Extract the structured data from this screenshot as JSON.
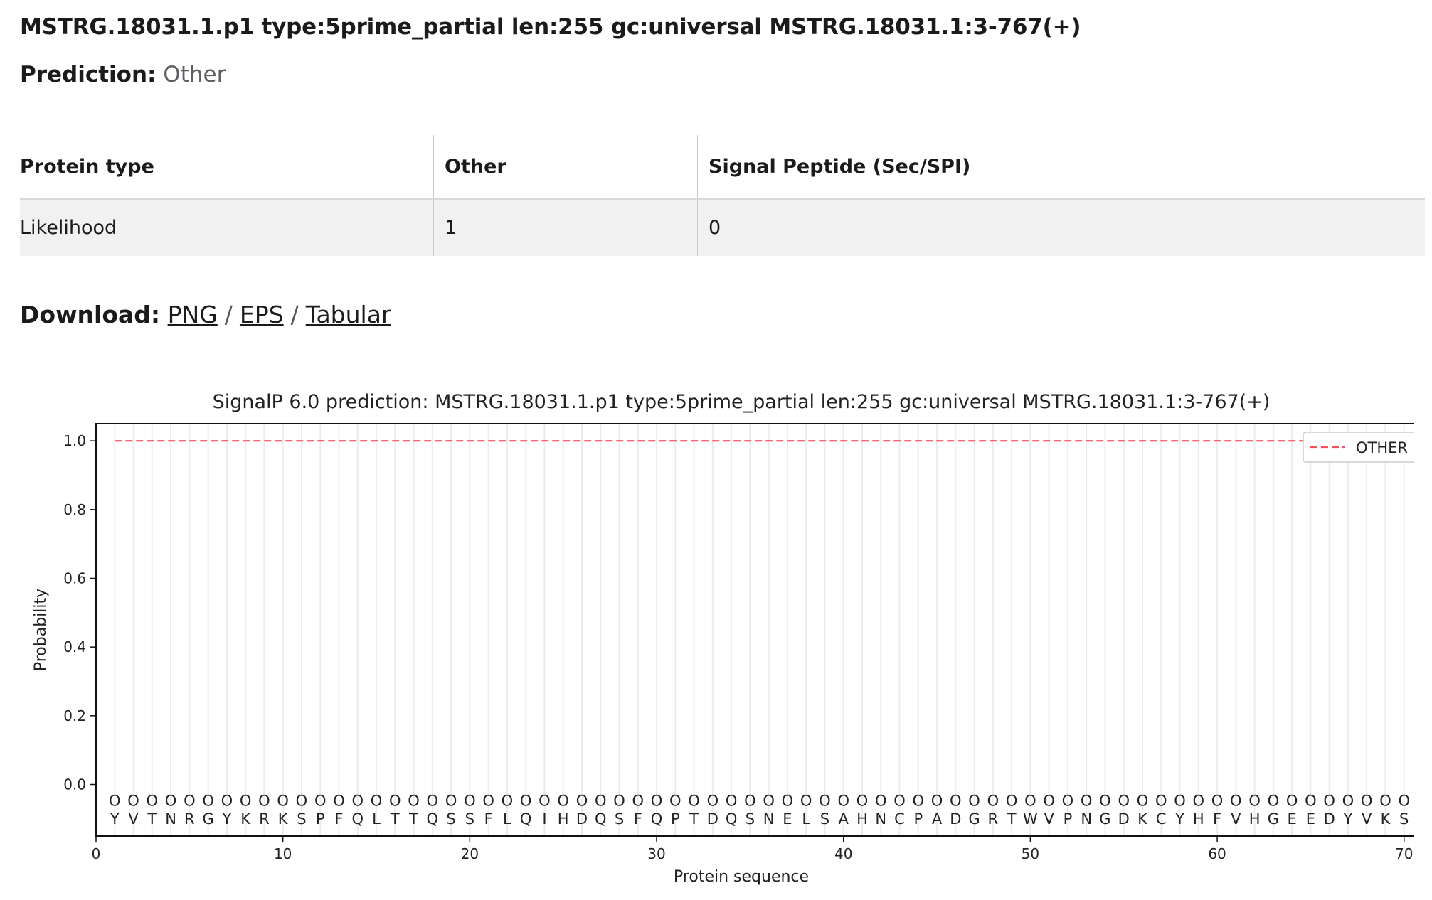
{
  "header": {
    "title": "MSTRG.18031.1.p1 type:5prime_partial len:255 gc:universal MSTRG.18031.1:3-767(+)",
    "prediction_label": "Prediction:",
    "prediction_value": "Other"
  },
  "table": {
    "headers": [
      "Protein type",
      "Other",
      "Signal Peptide (Sec/SPI)"
    ],
    "rows": [
      [
        "Likelihood",
        "1",
        "0"
      ]
    ]
  },
  "download": {
    "label": "Download:",
    "links": [
      "PNG",
      "EPS",
      "Tabular"
    ],
    "separator": "/"
  },
  "chart_data": {
    "type": "line",
    "title": "SignalP 6.0 prediction: MSTRG.18031.1.p1 type:5prime_partial len:255 gc:universal MSTRG.18031.1:3-767(+)",
    "xlabel": "Protein sequence",
    "ylabel": "Probability",
    "xlim": [
      0,
      71
    ],
    "ylim": [
      -0.15,
      1.05
    ],
    "xticks": [
      0,
      10,
      20,
      30,
      40,
      50,
      60,
      70
    ],
    "yticks": [
      0.0,
      0.2,
      0.4,
      0.6,
      0.8,
      1.0
    ],
    "legend_position": "top-right",
    "grid": "vertical lines at each residue",
    "series": [
      {
        "name": "OTHER",
        "color": "#ff4d5e",
        "style": "dashed",
        "x_range": [
          1,
          70
        ],
        "y": 1.0
      }
    ],
    "residue_labels": [
      "Y",
      "V",
      "T",
      "N",
      "R",
      "G",
      "Y",
      "K",
      "R",
      "K",
      "S",
      "P",
      "F",
      "Q",
      "L",
      "T",
      "T",
      "Q",
      "S",
      "S",
      "F",
      "L",
      "Q",
      "I",
      "H",
      "D",
      "Q",
      "S",
      "F",
      "Q",
      "P",
      "T",
      "D",
      "Q",
      "S",
      "N",
      "E",
      "L",
      "S",
      "A",
      "H",
      "N",
      "C",
      "P",
      "A",
      "D",
      "G",
      "R",
      "T",
      "W",
      "V",
      "P",
      "N",
      "G",
      "D",
      "K",
      "C",
      "Y",
      "H",
      "F",
      "V",
      "H",
      "G",
      "E",
      "E",
      "D",
      "Y",
      "V",
      "K",
      "S"
    ],
    "residue_marker": "O"
  }
}
